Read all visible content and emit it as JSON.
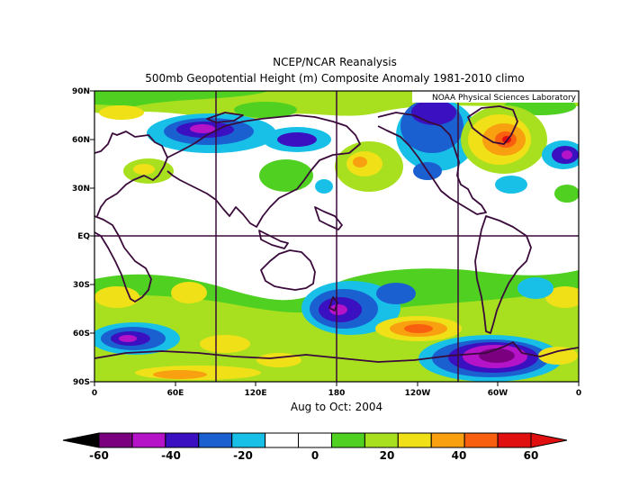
{
  "title_line1": "NCEP/NCAR Reanalysis",
  "title_line2": "500mb Geopotential Height (m) Composite Anomaly 1981-2010 climo",
  "credit": "NOAA Physical Sciences Laboratory",
  "period": "Aug to Oct: 2004",
  "lat_ticks": [
    "90N",
    "60N",
    "30N",
    "EQ",
    "30S",
    "60S",
    "90S"
  ],
  "lon_ticks": [
    "0",
    "60E",
    "120E",
    "180",
    "120W",
    "60W",
    "0"
  ],
  "colorbar": {
    "tick_labels": [
      "-60",
      "-40",
      "-20",
      "0",
      "20",
      "40",
      "60"
    ],
    "colors": [
      "#7a0080",
      "#b413c8",
      "#3a10c0",
      "#1a60d0",
      "#18c0e8",
      "#ffffff",
      "#ffffff",
      "#50d020",
      "#a8e020",
      "#f0e018",
      "#f8a010",
      "#f86010",
      "#e01010"
    ],
    "low_end_color": "#000000",
    "high_end_color": "#e01010"
  },
  "map": {
    "background": "#ffffff",
    "grid_color": "#3a0a3a",
    "lon_range": [
      0,
      360
    ],
    "lat_range": [
      -90,
      90
    ]
  }
}
